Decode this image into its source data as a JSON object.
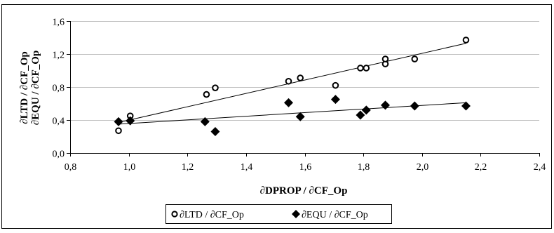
{
  "chart_data": {
    "type": "scatter",
    "xlabel": "∂DPROP / ∂CF_Op",
    "ylabel_lines": [
      "∂LTD / ∂CF_Op",
      "∂EQU / ∂CF_Op"
    ],
    "xlim": [
      0.8,
      2.4
    ],
    "ylim": [
      0.0,
      1.6
    ],
    "x_ticks": [
      0.8,
      1.0,
      1.2,
      1.4,
      1.6,
      1.8,
      2.0,
      2.2,
      2.4
    ],
    "y_ticks": [
      0.0,
      0.4,
      0.8,
      1.2,
      1.6
    ],
    "x_tick_labels": [
      "0,8",
      "1,0",
      "1,2",
      "1,4",
      "1,6",
      "1,8",
      "2,0",
      "2,2",
      "2,4"
    ],
    "y_tick_labels": [
      "0,0",
      "0,4",
      "0,8",
      "1,2",
      "1,6"
    ],
    "grid": "horizontal",
    "legend_position": "bottom",
    "series": [
      {
        "name": "∂LTD / ∂CF_Op",
        "marker": "open-circle",
        "color": "#000000",
        "x": [
          0.965,
          1.005,
          1.265,
          1.295,
          1.545,
          1.585,
          1.705,
          1.79,
          1.81,
          1.875,
          1.875,
          1.975,
          2.15
        ],
        "y": [
          0.27,
          0.45,
          0.71,
          0.79,
          0.87,
          0.91,
          0.82,
          1.03,
          1.03,
          1.08,
          1.14,
          1.14,
          1.37
        ],
        "trendline": [
          [
            0.965,
            0.37
          ],
          [
            2.15,
            1.33
          ]
        ]
      },
      {
        "name": "∂EQU / ∂CF_Op",
        "marker": "filled-diamond",
        "color": "#000000",
        "x": [
          0.965,
          1.005,
          1.26,
          1.295,
          1.545,
          1.585,
          1.705,
          1.79,
          1.81,
          1.875,
          1.975,
          2.15
        ],
        "y": [
          0.38,
          0.39,
          0.38,
          0.26,
          0.61,
          0.44,
          0.65,
          0.46,
          0.52,
          0.58,
          0.57,
          0.57
        ],
        "trendline": [
          [
            0.965,
            0.35
          ],
          [
            2.15,
            0.61
          ]
        ]
      }
    ]
  }
}
